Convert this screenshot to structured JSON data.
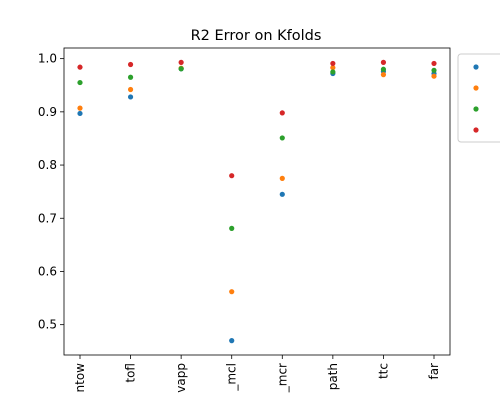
{
  "chart_data": {
    "type": "scatter",
    "title": "R2 Error on Kfolds",
    "xlabel": "",
    "ylabel": "",
    "categories": [
      "ntow",
      "tofl",
      "vapp",
      "_mcl",
      "_mcr",
      "path",
      "ttc",
      "far"
    ],
    "ylim": [
      0.443,
      1.02
    ],
    "yticks": [
      "0.5",
      "0.6",
      "0.7",
      "0.8",
      "0.9",
      "1.0"
    ],
    "grid": false,
    "legend_position": "upper right, outside plot (clipped)",
    "series": [
      {
        "color": "#1f77b4",
        "values": [
          0.897,
          0.928,
          0.981,
          0.47,
          0.745,
          0.972,
          0.976,
          0.972
        ]
      },
      {
        "color": "#ff7f0e",
        "values": [
          0.907,
          0.942,
          0.982,
          0.562,
          0.775,
          0.983,
          0.97,
          0.967
        ]
      },
      {
        "color": "#2ca02c",
        "values": [
          0.955,
          0.965,
          0.981,
          0.681,
          0.851,
          0.975,
          0.98,
          0.978
        ]
      },
      {
        "color": "#d62728",
        "values": [
          0.984,
          0.989,
          0.993,
          0.78,
          0.898,
          0.991,
          0.993,
          0.991
        ]
      }
    ]
  }
}
